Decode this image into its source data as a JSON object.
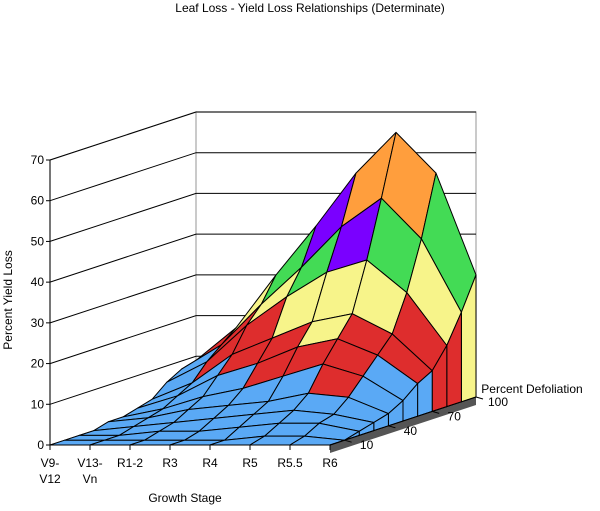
{
  "chart_data": {
    "type": "surface3d",
    "title": "Leaf Loss - Yield Loss Relationships (Determinate)",
    "xlabel": "Growth Stage",
    "ylabel": "Percent Yield Loss",
    "zlabel": "Percent Defoliation",
    "x_ticks": [
      {
        "line1": "V9-",
        "line2": "V12"
      },
      {
        "line1": "V13-",
        "line2": "Vn"
      },
      {
        "line1": "R1-2",
        "line2": ""
      },
      {
        "line1": "R3",
        "line2": ""
      },
      {
        "line1": "R4",
        "line2": ""
      },
      {
        "line1": "R5",
        "line2": ""
      },
      {
        "line1": "R5.5",
        "line2": ""
      },
      {
        "line1": "R6",
        "line2": ""
      }
    ],
    "y_ticks": [
      "0",
      "10",
      "20",
      "30",
      "40",
      "50",
      "60",
      "70"
    ],
    "y_range": [
      0,
      70
    ],
    "z_ticks": [
      {
        "value": 10,
        "label": "10"
      },
      {
        "value": 40,
        "label": "40"
      },
      {
        "value": 70,
        "label": "70"
      },
      {
        "value": 100,
        "label": "100"
      }
    ],
    "defoliation_values": [
      0,
      10,
      20,
      30,
      40,
      50,
      60,
      70,
      80,
      90,
      100
    ],
    "yield_loss": [
      [
        0,
        0,
        0,
        0,
        0,
        0,
        0,
        0
      ],
      [
        0,
        0,
        0,
        0,
        0,
        1,
        1,
        0
      ],
      [
        0,
        0,
        1,
        1,
        2,
        3,
        3,
        1
      ],
      [
        0,
        1,
        2,
        3,
        4,
        5,
        4,
        2
      ],
      [
        1,
        2,
        4,
        5,
        6,
        8,
        7,
        3
      ],
      [
        1,
        3,
        6,
        8,
        11,
        14,
        11,
        5
      ],
      [
        2,
        5,
        10,
        13,
        17,
        19,
        15,
        8
      ],
      [
        3,
        7,
        14,
        18,
        22,
        24,
        19,
        10
      ],
      [
        6,
        11,
        20,
        27,
        33,
        36,
        28,
        15
      ],
      [
        8,
        14,
        24,
        33,
        43,
        50,
        40,
        22
      ],
      [
        9,
        17,
        30,
        42,
        55,
        65,
        55,
        30
      ]
    ],
    "color_bands": [
      {
        "min": 0,
        "max": 10,
        "color": "#5aa9f5"
      },
      {
        "min": 10,
        "max": 20,
        "color": "#de2d2d"
      },
      {
        "min": 20,
        "max": 30,
        "color": "#f7f48a"
      },
      {
        "min": 30,
        "max": 40,
        "color": "#43db55"
      },
      {
        "min": 40,
        "max": 50,
        "color": "#7a00ff"
      },
      {
        "min": 50,
        "max": 60,
        "color": "#ff9e3d"
      },
      {
        "min": 60,
        "max": 70,
        "color": "#8c5252"
      }
    ],
    "wall_color": "#a6a6a6",
    "grid": true
  }
}
